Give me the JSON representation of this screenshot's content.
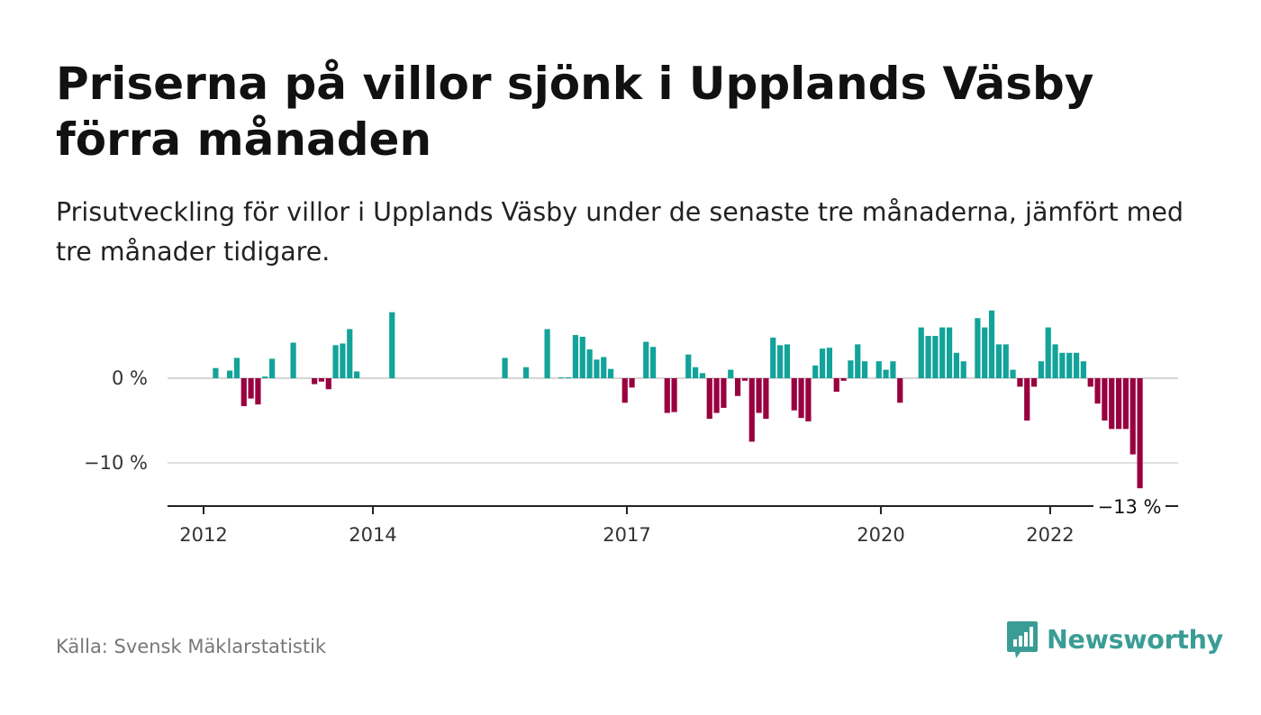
{
  "title": "Priserna på villor sjönk i Upplands Väsby förra månaden",
  "subtitle": "Prisutveckling för villor i Upplands Väsby under de senaste tre månaderna, jämfört med tre månader tidigare.",
  "source": "Källa: Svensk Mäklarstatistik",
  "brand": {
    "name": "Newsworthy",
    "icon": "newsworthy-logo-icon",
    "color": "#3a9d95"
  },
  "chart_data": {
    "type": "bar",
    "title": "Priserna på villor sjönk i Upplands Väsby förra månaden",
    "ylabel": "",
    "xlabel": "",
    "y_unit": "%",
    "ylim": [
      -15,
      8
    ],
    "y_ticks": [
      {
        "value": 0,
        "label": "0 %"
      },
      {
        "value": -10,
        "label": "−10 %"
      }
    ],
    "x_ticks": [
      {
        "value": "2012-01",
        "label": "2012"
      },
      {
        "value": "2014-01",
        "label": "2014"
      },
      {
        "value": "2017-01",
        "label": "2017"
      },
      {
        "value": "2020-01",
        "label": "2020"
      },
      {
        "value": "2022-01",
        "label": "2022"
      }
    ],
    "grid": true,
    "positive_color": "#12a39a",
    "negative_color": "#990040",
    "last_value_label": "−13 %",
    "points": [
      {
        "x": "2012-02",
        "y": 1.2
      },
      {
        "x": "2012-04",
        "y": 0.9
      },
      {
        "x": "2012-05",
        "y": 2.4
      },
      {
        "x": "2012-06",
        "y": -3.3
      },
      {
        "x": "2012-07",
        "y": -2.4
      },
      {
        "x": "2012-08",
        "y": -3.1
      },
      {
        "x": "2012-09",
        "y": 0.2
      },
      {
        "x": "2012-10",
        "y": 2.3
      },
      {
        "x": "2013-01",
        "y": 4.2
      },
      {
        "x": "2013-04",
        "y": -0.7
      },
      {
        "x": "2013-05",
        "y": -0.4
      },
      {
        "x": "2013-06",
        "y": -1.3
      },
      {
        "x": "2013-07",
        "y": 3.9
      },
      {
        "x": "2013-08",
        "y": 4.1
      },
      {
        "x": "2013-09",
        "y": 5.8
      },
      {
        "x": "2013-10",
        "y": 0.8
      },
      {
        "x": "2014-03",
        "y": 7.8
      },
      {
        "x": "2015-07",
        "y": 2.4
      },
      {
        "x": "2015-10",
        "y": 1.3
      },
      {
        "x": "2016-01",
        "y": 5.8
      },
      {
        "x": "2016-03",
        "y": 0.1
      },
      {
        "x": "2016-04",
        "y": 0.1
      },
      {
        "x": "2016-05",
        "y": 5.1
      },
      {
        "x": "2016-06",
        "y": 4.9
      },
      {
        "x": "2016-07",
        "y": 3.4
      },
      {
        "x": "2016-08",
        "y": 2.2
      },
      {
        "x": "2016-09",
        "y": 2.5
      },
      {
        "x": "2016-10",
        "y": 1.1
      },
      {
        "x": "2016-12",
        "y": -2.9
      },
      {
        "x": "2017-01",
        "y": -1.1
      },
      {
        "x": "2017-03",
        "y": 4.3
      },
      {
        "x": "2017-04",
        "y": 3.7
      },
      {
        "x": "2017-06",
        "y": -4.1
      },
      {
        "x": "2017-07",
        "y": -4.0
      },
      {
        "x": "2017-09",
        "y": 2.8
      },
      {
        "x": "2017-10",
        "y": 1.3
      },
      {
        "x": "2017-11",
        "y": 0.6
      },
      {
        "x": "2017-12",
        "y": -4.8
      },
      {
        "x": "2018-01",
        "y": -4.1
      },
      {
        "x": "2018-02",
        "y": -3.5
      },
      {
        "x": "2018-03",
        "y": 1.0
      },
      {
        "x": "2018-04",
        "y": -2.1
      },
      {
        "x": "2018-05",
        "y": -0.3
      },
      {
        "x": "2018-06",
        "y": -7.5
      },
      {
        "x": "2018-07",
        "y": -4.1
      },
      {
        "x": "2018-08",
        "y": -4.8
      },
      {
        "x": "2018-09",
        "y": 4.8
      },
      {
        "x": "2018-10",
        "y": 3.9
      },
      {
        "x": "2018-11",
        "y": 4.0
      },
      {
        "x": "2018-12",
        "y": -3.8
      },
      {
        "x": "2019-01",
        "y": -4.7
      },
      {
        "x": "2019-02",
        "y": -5.1
      },
      {
        "x": "2019-03",
        "y": 1.5
      },
      {
        "x": "2019-04",
        "y": 3.5
      },
      {
        "x": "2019-05",
        "y": 3.6
      },
      {
        "x": "2019-06",
        "y": -1.6
      },
      {
        "x": "2019-07",
        "y": -0.3
      },
      {
        "x": "2019-08",
        "y": 2.1
      },
      {
        "x": "2019-09",
        "y": 4.0
      },
      {
        "x": "2019-10",
        "y": 2.0
      },
      {
        "x": "2019-12",
        "y": 2.0
      },
      {
        "x": "2020-01",
        "y": 1.0
      },
      {
        "x": "2020-02",
        "y": 2.0
      },
      {
        "x": "2020-03",
        "y": -2.9
      },
      {
        "x": "2020-06",
        "y": 6.0
      },
      {
        "x": "2020-07",
        "y": 5.0
      },
      {
        "x": "2020-08",
        "y": 5.0
      },
      {
        "x": "2020-09",
        "y": 6.0
      },
      {
        "x": "2020-10",
        "y": 6.0
      },
      {
        "x": "2020-11",
        "y": 3.0
      },
      {
        "x": "2020-12",
        "y": 2.0
      },
      {
        "x": "2021-02",
        "y": 7.1
      },
      {
        "x": "2021-03",
        "y": 6.0
      },
      {
        "x": "2021-04",
        "y": 8.0
      },
      {
        "x": "2021-05",
        "y": 4.0
      },
      {
        "x": "2021-06",
        "y": 4.0
      },
      {
        "x": "2021-07",
        "y": 1.0
      },
      {
        "x": "2021-08",
        "y": -1.0
      },
      {
        "x": "2021-09",
        "y": -5.0
      },
      {
        "x": "2021-10",
        "y": -1.0
      },
      {
        "x": "2021-11",
        "y": 2.0
      },
      {
        "x": "2021-12",
        "y": 6.0
      },
      {
        "x": "2022-01",
        "y": 4.0
      },
      {
        "x": "2022-02",
        "y": 3.0
      },
      {
        "x": "2022-03",
        "y": 3.0
      },
      {
        "x": "2022-04",
        "y": 3.0
      },
      {
        "x": "2022-05",
        "y": 2.0
      },
      {
        "x": "2022-06",
        "y": -1.0
      },
      {
        "x": "2022-07",
        "y": -3.0
      },
      {
        "x": "2022-08",
        "y": -5.0
      },
      {
        "x": "2022-09",
        "y": -6.0
      },
      {
        "x": "2022-10",
        "y": -6.0
      },
      {
        "x": "2022-11",
        "y": -6.0
      },
      {
        "x": "2022-12",
        "y": -9.0
      },
      {
        "x": "2023-01",
        "y": -13.0
      }
    ]
  }
}
